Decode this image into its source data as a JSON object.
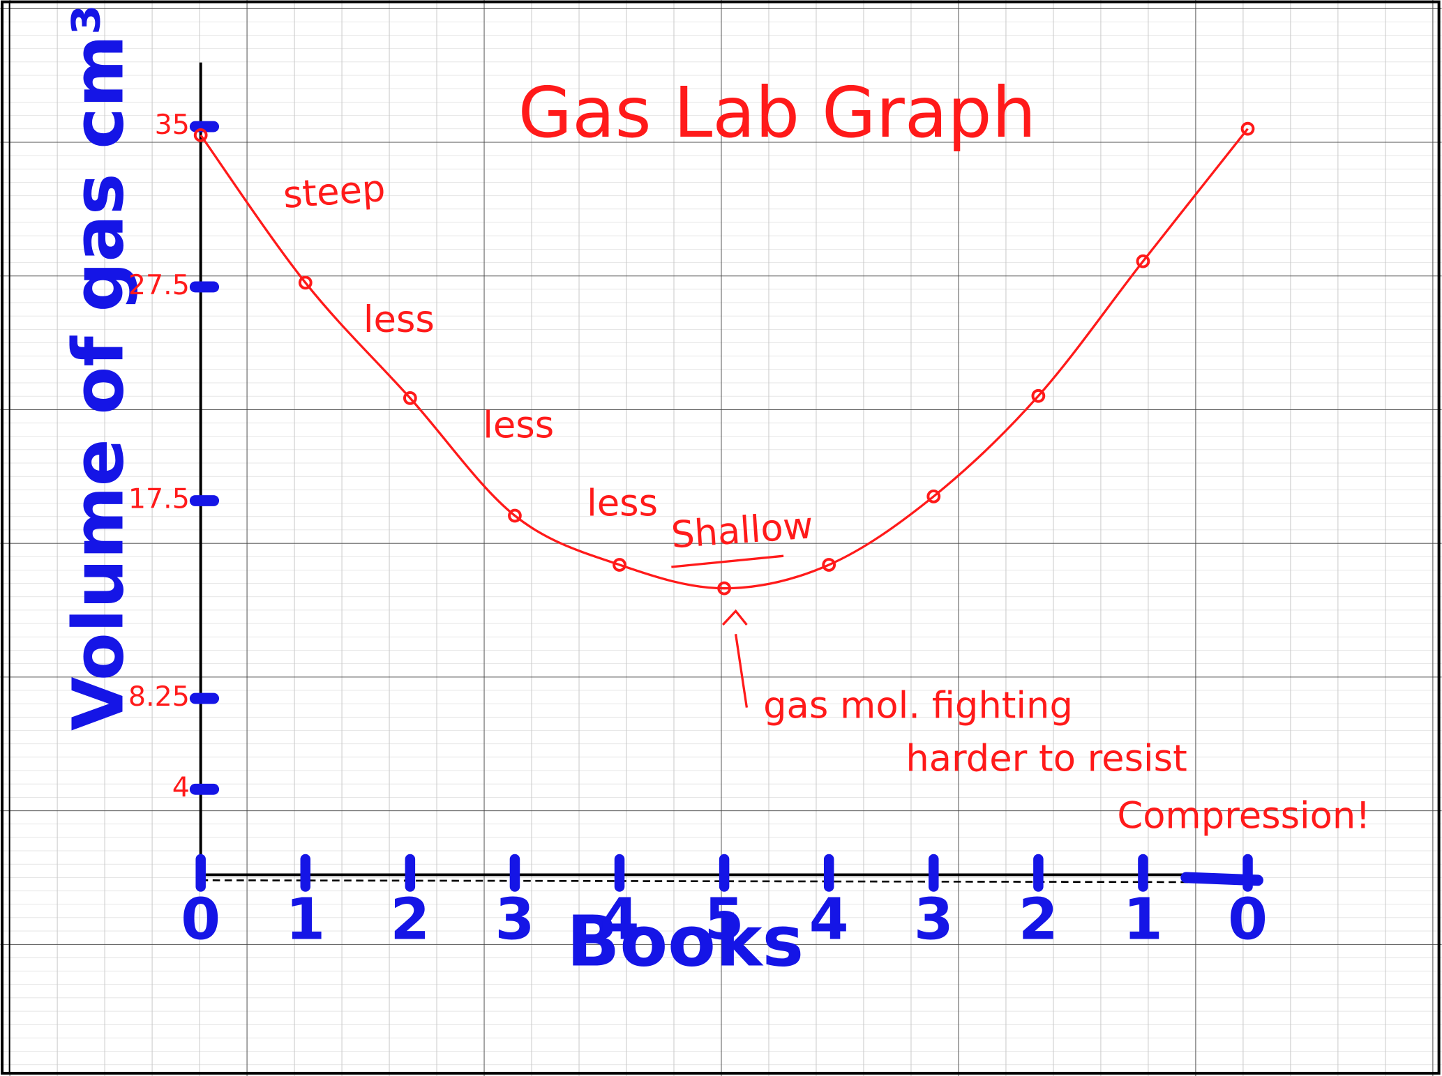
{
  "chart_data": {
    "type": "line",
    "title": "Gas Lab Graph",
    "x_label": "Books",
    "y_label": "Volume of gas cm³",
    "categories": [
      "0",
      "1",
      "2",
      "3",
      "4",
      "5",
      "4",
      "3",
      "2",
      "1",
      "0"
    ],
    "values": [
      34.6,
      27.7,
      22.3,
      16.8,
      14.5,
      13.4,
      14.5,
      17.7,
      22.4,
      28.7,
      34.9
    ],
    "color": "#ff1a1a",
    "ylim": [
      0,
      38
    ],
    "yticks": [
      4,
      8.25,
      17.5,
      27.5,
      35
    ],
    "annotations": [
      "steep",
      "less",
      "less",
      "less",
      "Shallow",
      "gas mol. fighting",
      "harder to resist",
      "Compression!"
    ]
  }
}
